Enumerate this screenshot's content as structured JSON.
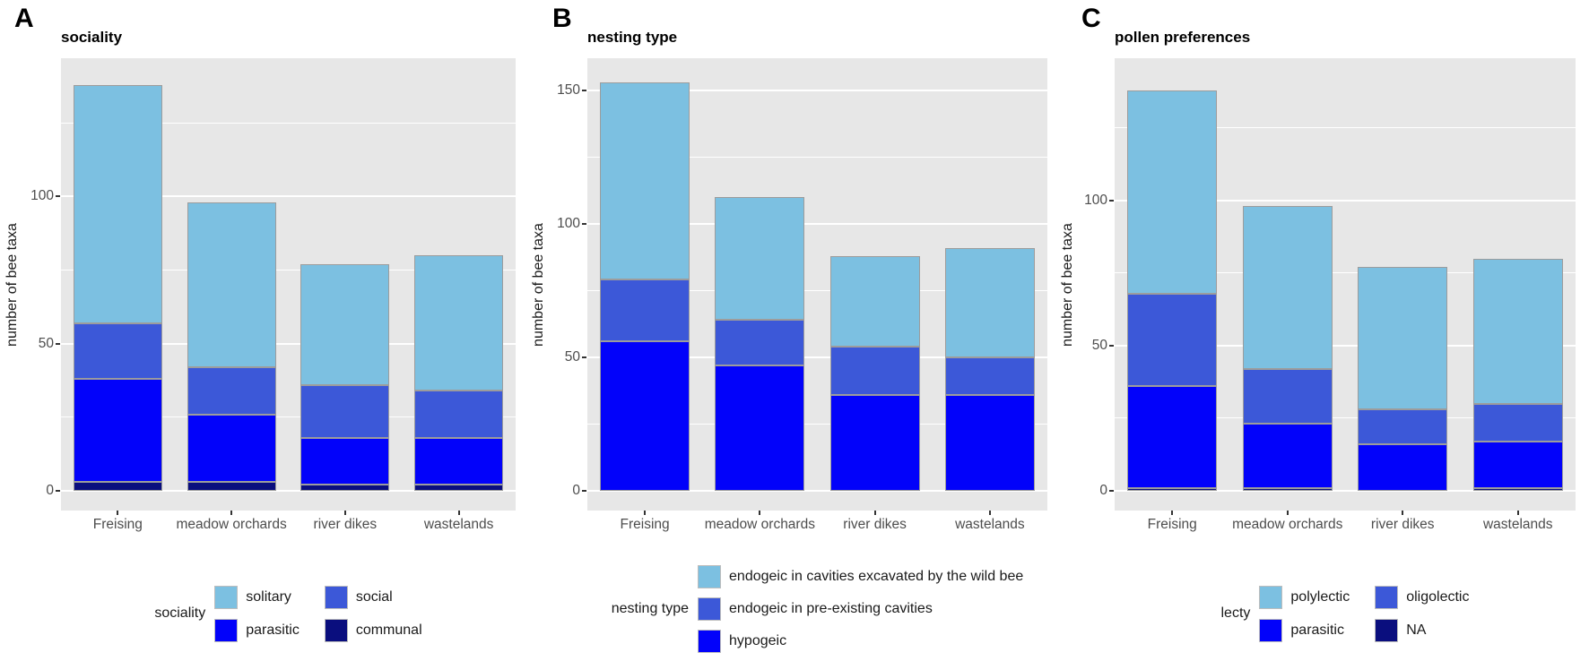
{
  "colors": {
    "lightblue": "#7CC0E1",
    "royal": "#3C58D8",
    "blue": "#0202FA",
    "navy": "#0A0E7E"
  },
  "chart_data": [
    {
      "type": "bar",
      "stacked": true,
      "panel_letter": "A",
      "title": "sociality",
      "xlabel": "",
      "ylabel": "number of bee taxa",
      "categories": [
        "Freising",
        "meadow orchards",
        "river dikes",
        "wastelands"
      ],
      "y_ticks": [
        0,
        50,
        100
      ],
      "y_minor_ticks": [
        25,
        75,
        125
      ],
      "ylim": [
        0,
        147
      ],
      "grid": true,
      "series": [
        {
          "name": "communal",
          "color": "navy",
          "values": [
            3,
            3,
            2,
            2
          ]
        },
        {
          "name": "parasitic",
          "color": "blue",
          "values": [
            35,
            23,
            16,
            16
          ]
        },
        {
          "name": "social",
          "color": "royal",
          "values": [
            19,
            16,
            18,
            16
          ]
        },
        {
          "name": "solitary",
          "color": "lightblue",
          "values": [
            81,
            56,
            41,
            46
          ]
        }
      ],
      "totals": [
        138,
        98,
        77,
        80
      ],
      "legend": {
        "title": "sociality",
        "layout": "grid",
        "position": "bottom",
        "items": [
          {
            "label": "solitary",
            "color": "lightblue"
          },
          {
            "label": "social",
            "color": "royal"
          },
          {
            "label": "parasitic",
            "color": "blue"
          },
          {
            "label": "communal",
            "color": "navy"
          }
        ]
      }
    },
    {
      "type": "bar",
      "stacked": true,
      "panel_letter": "B",
      "title": "nesting type",
      "xlabel": "",
      "ylabel": "number of bee taxa",
      "categories": [
        "Freising",
        "meadow orchards",
        "river dikes",
        "wastelands"
      ],
      "y_ticks": [
        0,
        50,
        100,
        150
      ],
      "y_minor_ticks": [
        25,
        75,
        125
      ],
      "ylim": [
        0,
        162
      ],
      "grid": true,
      "series": [
        {
          "name": "hypogeic",
          "color": "blue",
          "values": [
            56,
            47,
            36,
            36
          ]
        },
        {
          "name": "endogeic in pre-existing cavities",
          "color": "royal",
          "values": [
            23,
            17,
            18,
            14
          ]
        },
        {
          "name": "endogeic in cavities excavated by the wild bee",
          "color": "lightblue",
          "values": [
            74,
            46,
            34,
            41
          ]
        }
      ],
      "totals": [
        153,
        110,
        88,
        91
      ],
      "legend": {
        "title": "nesting type",
        "layout": "column",
        "position": "bottom",
        "items": [
          {
            "label": "endogeic in cavities excavated by the wild bee",
            "color": "lightblue"
          },
          {
            "label": "endogeic in pre-existing cavities",
            "color": "royal"
          },
          {
            "label": "hypogeic",
            "color": "blue"
          }
        ]
      }
    },
    {
      "type": "bar",
      "stacked": true,
      "panel_letter": "C",
      "title": "pollen preferences",
      "xlabel": "",
      "ylabel": "number of bee taxa",
      "categories": [
        "Freising",
        "meadow orchards",
        "river dikes",
        "wastelands"
      ],
      "y_ticks": [
        0,
        50,
        100
      ],
      "y_minor_ticks": [
        25,
        75,
        125
      ],
      "ylim": [
        0,
        149
      ],
      "grid": true,
      "series": [
        {
          "name": "NA",
          "color": "navy",
          "values": [
            1,
            1,
            0,
            1
          ]
        },
        {
          "name": "parasitic",
          "color": "blue",
          "values": [
            35,
            22,
            16,
            16
          ]
        },
        {
          "name": "oligolectic",
          "color": "royal",
          "values": [
            32,
            19,
            12,
            13
          ]
        },
        {
          "name": "polylectic",
          "color": "lightblue",
          "values": [
            70,
            56,
            49,
            50
          ]
        }
      ],
      "totals": [
        138,
        98,
        77,
        80
      ],
      "legend": {
        "title": "lecty",
        "layout": "grid",
        "position": "bottom",
        "items": [
          {
            "label": "polylectic",
            "color": "lightblue"
          },
          {
            "label": "oligolectic",
            "color": "royal"
          },
          {
            "label": "parasitic",
            "color": "blue"
          },
          {
            "label": "NA",
            "color": "navy"
          }
        ]
      }
    }
  ]
}
